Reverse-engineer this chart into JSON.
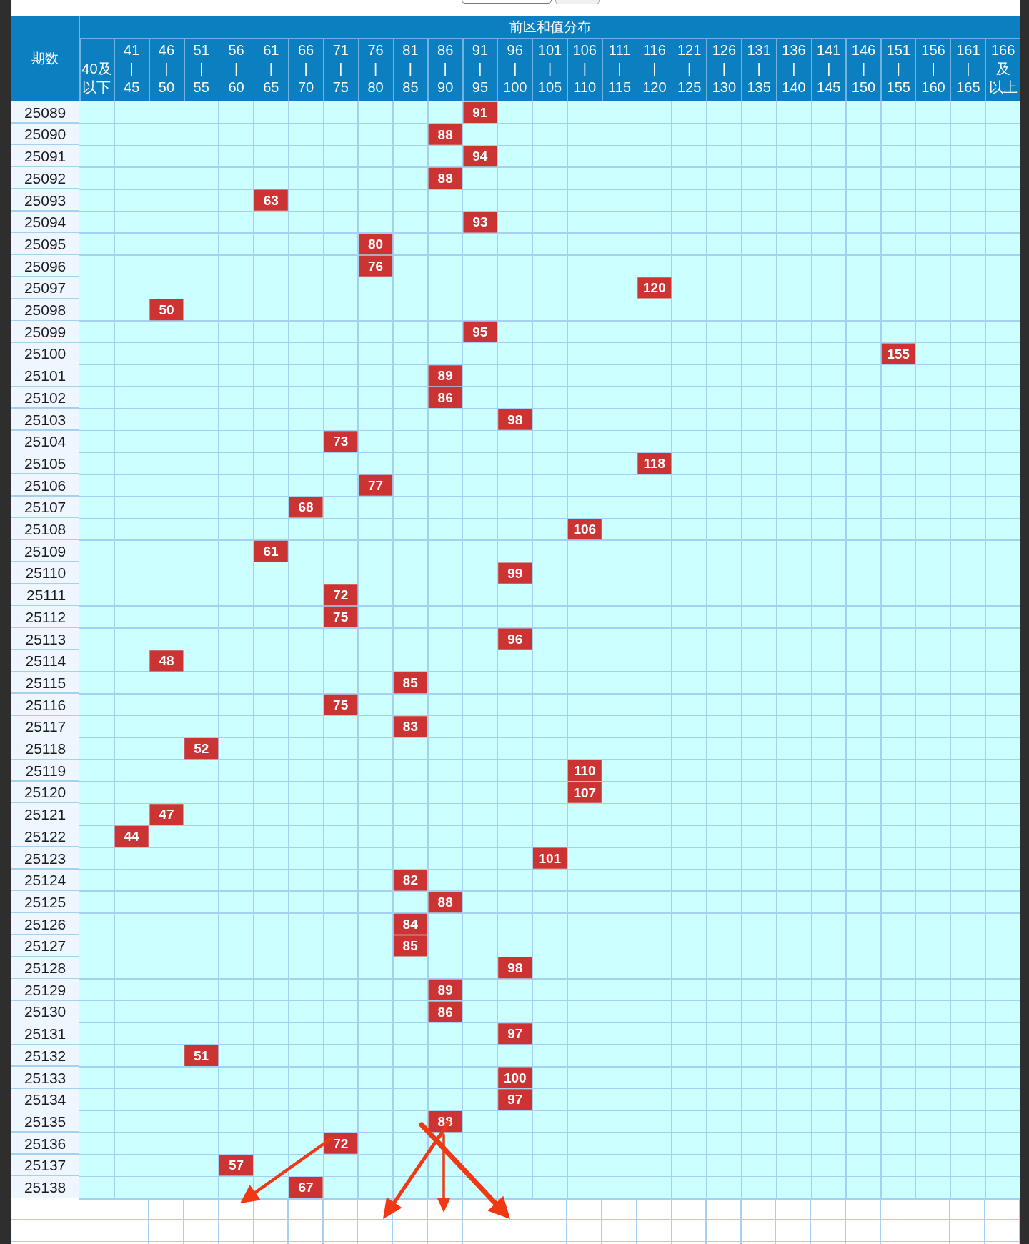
{
  "chart_data": {
    "type": "heatmap",
    "xlabel": "前区和值分布",
    "ylabel": "期数",
    "categories": [
      "40及以下",
      "41\n|\n45",
      "46\n|\n50",
      "51\n|\n55",
      "56\n|\n60",
      "61\n|\n65",
      "66\n|\n70",
      "71\n|\n75",
      "76\n|\n80",
      "81\n|\n85",
      "86\n|\n90",
      "91\n|\n95",
      "96\n|\n100",
      "101\n|\n105",
      "106\n|\n110",
      "111\n|\n115",
      "116\n|\n120",
      "121\n|\n125",
      "126\n|\n130",
      "131\n|\n135",
      "136\n|\n140",
      "141\n|\n145",
      "146\n|\n150",
      "151\n|\n155",
      "156\n|\n160",
      "161\n|\n165",
      "166及以上"
    ],
    "y_categories": [
      "25089",
      "25090",
      "25091",
      "25092",
      "25093",
      "25094",
      "25095",
      "25096",
      "25097",
      "25098",
      "25099",
      "25100",
      "25101",
      "25102",
      "25103",
      "25104",
      "25105",
      "25106",
      "25107",
      "25108",
      "25109",
      "25110",
      "25111",
      "25112",
      "25113",
      "25114",
      "25115",
      "25116",
      "25117",
      "25118",
      "25119",
      "25120",
      "25121",
      "25122",
      "25123",
      "25124",
      "25125",
      "25126",
      "25127",
      "25128",
      "25129",
      "25130",
      "25131",
      "25132",
      "25133",
      "25134",
      "25135",
      "25136",
      "25137",
      "25138"
    ],
    "cells": [
      [
        null,
        null,
        null,
        null,
        null,
        null,
        null,
        null,
        null,
        null,
        null,
        91,
        null,
        null,
        null,
        null,
        null,
        null,
        null,
        null,
        null,
        null,
        null,
        null,
        null,
        null,
        null
      ],
      [
        null,
        null,
        null,
        null,
        null,
        null,
        null,
        null,
        null,
        null,
        88,
        null,
        null,
        null,
        null,
        null,
        null,
        null,
        null,
        null,
        null,
        null,
        null,
        null,
        null,
        null,
        null
      ],
      [
        null,
        null,
        null,
        null,
        null,
        null,
        null,
        null,
        null,
        null,
        null,
        94,
        null,
        null,
        null,
        null,
        null,
        null,
        null,
        null,
        null,
        null,
        null,
        null,
        null,
        null,
        null
      ],
      [
        null,
        null,
        null,
        null,
        null,
        null,
        null,
        null,
        null,
        null,
        88,
        null,
        null,
        null,
        null,
        null,
        null,
        null,
        null,
        null,
        null,
        null,
        null,
        null,
        null,
        null,
        null
      ],
      [
        null,
        null,
        null,
        null,
        null,
        63,
        null,
        null,
        null,
        null,
        null,
        null,
        null,
        null,
        null,
        null,
        null,
        null,
        null,
        null,
        null,
        null,
        null,
        null,
        null,
        null,
        null
      ],
      [
        null,
        null,
        null,
        null,
        null,
        null,
        null,
        null,
        null,
        null,
        null,
        93,
        null,
        null,
        null,
        null,
        null,
        null,
        null,
        null,
        null,
        null,
        null,
        null,
        null,
        null,
        null
      ],
      [
        null,
        null,
        null,
        null,
        null,
        null,
        null,
        null,
        80,
        null,
        null,
        null,
        null,
        null,
        null,
        null,
        null,
        null,
        null,
        null,
        null,
        null,
        null,
        null,
        null,
        null,
        null
      ],
      [
        null,
        null,
        null,
        null,
        null,
        null,
        null,
        null,
        76,
        null,
        null,
        null,
        null,
        null,
        null,
        null,
        null,
        null,
        null,
        null,
        null,
        null,
        null,
        null,
        null,
        null,
        null
      ],
      [
        null,
        null,
        null,
        null,
        null,
        null,
        null,
        null,
        null,
        null,
        null,
        null,
        null,
        null,
        null,
        null,
        120,
        null,
        null,
        null,
        null,
        null,
        null,
        null,
        null,
        null,
        null
      ],
      [
        null,
        null,
        50,
        null,
        null,
        null,
        null,
        null,
        null,
        null,
        null,
        null,
        null,
        null,
        null,
        null,
        null,
        null,
        null,
        null,
        null,
        null,
        null,
        null,
        null,
        null,
        null
      ],
      [
        null,
        null,
        null,
        null,
        null,
        null,
        null,
        null,
        null,
        null,
        null,
        95,
        null,
        null,
        null,
        null,
        null,
        null,
        null,
        null,
        null,
        null,
        null,
        null,
        null,
        null,
        null
      ],
      [
        null,
        null,
        null,
        null,
        null,
        null,
        null,
        null,
        null,
        null,
        null,
        null,
        null,
        null,
        null,
        null,
        null,
        null,
        null,
        null,
        null,
        null,
        null,
        155,
        null,
        null,
        null
      ],
      [
        null,
        null,
        null,
        null,
        null,
        null,
        null,
        null,
        null,
        null,
        89,
        null,
        null,
        null,
        null,
        null,
        null,
        null,
        null,
        null,
        null,
        null,
        null,
        null,
        null,
        null,
        null
      ],
      [
        null,
        null,
        null,
        null,
        null,
        null,
        null,
        null,
        null,
        null,
        86,
        null,
        null,
        null,
        null,
        null,
        null,
        null,
        null,
        null,
        null,
        null,
        null,
        null,
        null,
        null,
        null
      ],
      [
        null,
        null,
        null,
        null,
        null,
        null,
        null,
        null,
        null,
        null,
        null,
        null,
        98,
        null,
        null,
        null,
        null,
        null,
        null,
        null,
        null,
        null,
        null,
        null,
        null,
        null,
        null
      ],
      [
        null,
        null,
        null,
        null,
        null,
        null,
        null,
        73,
        null,
        null,
        null,
        null,
        null,
        null,
        null,
        null,
        null,
        null,
        null,
        null,
        null,
        null,
        null,
        null,
        null,
        null,
        null
      ],
      [
        null,
        null,
        null,
        null,
        null,
        null,
        null,
        null,
        null,
        null,
        null,
        null,
        null,
        null,
        null,
        null,
        118,
        null,
        null,
        null,
        null,
        null,
        null,
        null,
        null,
        null,
        null
      ],
      [
        null,
        null,
        null,
        null,
        null,
        null,
        null,
        null,
        77,
        null,
        null,
        null,
        null,
        null,
        null,
        null,
        null,
        null,
        null,
        null,
        null,
        null,
        null,
        null,
        null,
        null,
        null
      ],
      [
        null,
        null,
        null,
        null,
        null,
        null,
        68,
        null,
        null,
        null,
        null,
        null,
        null,
        null,
        null,
        null,
        null,
        null,
        null,
        null,
        null,
        null,
        null,
        null,
        null,
        null,
        null
      ],
      [
        null,
        null,
        null,
        null,
        null,
        null,
        null,
        null,
        null,
        null,
        null,
        null,
        null,
        null,
        106,
        null,
        null,
        null,
        null,
        null,
        null,
        null,
        null,
        null,
        null,
        null,
        null
      ],
      [
        null,
        null,
        null,
        null,
        null,
        61,
        null,
        null,
        null,
        null,
        null,
        null,
        null,
        null,
        null,
        null,
        null,
        null,
        null,
        null,
        null,
        null,
        null,
        null,
        null,
        null,
        null
      ],
      [
        null,
        null,
        null,
        null,
        null,
        null,
        null,
        null,
        null,
        null,
        null,
        null,
        99,
        null,
        null,
        null,
        null,
        null,
        null,
        null,
        null,
        null,
        null,
        null,
        null,
        null,
        null
      ],
      [
        null,
        null,
        null,
        null,
        null,
        null,
        null,
        72,
        null,
        null,
        null,
        null,
        null,
        null,
        null,
        null,
        null,
        null,
        null,
        null,
        null,
        null,
        null,
        null,
        null,
        null,
        null
      ],
      [
        null,
        null,
        null,
        null,
        null,
        null,
        null,
        75,
        null,
        null,
        null,
        null,
        null,
        null,
        null,
        null,
        null,
        null,
        null,
        null,
        null,
        null,
        null,
        null,
        null,
        null,
        null
      ],
      [
        null,
        null,
        null,
        null,
        null,
        null,
        null,
        null,
        null,
        null,
        null,
        null,
        96,
        null,
        null,
        null,
        null,
        null,
        null,
        null,
        null,
        null,
        null,
        null,
        null,
        null,
        null
      ],
      [
        null,
        null,
        48,
        null,
        null,
        null,
        null,
        null,
        null,
        null,
        null,
        null,
        null,
        null,
        null,
        null,
        null,
        null,
        null,
        null,
        null,
        null,
        null,
        null,
        null,
        null,
        null
      ],
      [
        null,
        null,
        null,
        null,
        null,
        null,
        null,
        null,
        null,
        85,
        null,
        null,
        null,
        null,
        null,
        null,
        null,
        null,
        null,
        null,
        null,
        null,
        null,
        null,
        null,
        null,
        null
      ],
      [
        null,
        null,
        null,
        null,
        null,
        null,
        null,
        75,
        null,
        null,
        null,
        null,
        null,
        null,
        null,
        null,
        null,
        null,
        null,
        null,
        null,
        null,
        null,
        null,
        null,
        null,
        null
      ],
      [
        null,
        null,
        null,
        null,
        null,
        null,
        null,
        null,
        null,
        83,
        null,
        null,
        null,
        null,
        null,
        null,
        null,
        null,
        null,
        null,
        null,
        null,
        null,
        null,
        null,
        null,
        null
      ],
      [
        null,
        null,
        null,
        52,
        null,
        null,
        null,
        null,
        null,
        null,
        null,
        null,
        null,
        null,
        null,
        null,
        null,
        null,
        null,
        null,
        null,
        null,
        null,
        null,
        null,
        null,
        null
      ],
      [
        null,
        null,
        null,
        null,
        null,
        null,
        null,
        null,
        null,
        null,
        null,
        null,
        null,
        null,
        110,
        null,
        null,
        null,
        null,
        null,
        null,
        null,
        null,
        null,
        null,
        null,
        null
      ],
      [
        null,
        null,
        null,
        null,
        null,
        null,
        null,
        null,
        null,
        null,
        null,
        null,
        null,
        null,
        107,
        null,
        null,
        null,
        null,
        null,
        null,
        null,
        null,
        null,
        null,
        null,
        null
      ],
      [
        null,
        null,
        47,
        null,
        null,
        null,
        null,
        null,
        null,
        null,
        null,
        null,
        null,
        null,
        null,
        null,
        null,
        null,
        null,
        null,
        null,
        null,
        null,
        null,
        null,
        null,
        null
      ],
      [
        null,
        44,
        null,
        null,
        null,
        null,
        null,
        null,
        null,
        null,
        null,
        null,
        null,
        null,
        null,
        null,
        null,
        null,
        null,
        null,
        null,
        null,
        null,
        null,
        null,
        null,
        null
      ],
      [
        null,
        null,
        null,
        null,
        null,
        null,
        null,
        null,
        null,
        null,
        null,
        null,
        null,
        101,
        null,
        null,
        null,
        null,
        null,
        null,
        null,
        null,
        null,
        null,
        null,
        null,
        null
      ],
      [
        null,
        null,
        null,
        null,
        null,
        null,
        null,
        null,
        null,
        82,
        null,
        null,
        null,
        null,
        null,
        null,
        null,
        null,
        null,
        null,
        null,
        null,
        null,
        null,
        null,
        null,
        null
      ],
      [
        null,
        null,
        null,
        null,
        null,
        null,
        null,
        null,
        null,
        null,
        88,
        null,
        null,
        null,
        null,
        null,
        null,
        null,
        null,
        null,
        null,
        null,
        null,
        null,
        null,
        null,
        null
      ],
      [
        null,
        null,
        null,
        null,
        null,
        null,
        null,
        null,
        null,
        84,
        null,
        null,
        null,
        null,
        null,
        null,
        null,
        null,
        null,
        null,
        null,
        null,
        null,
        null,
        null,
        null,
        null
      ],
      [
        null,
        null,
        null,
        null,
        null,
        null,
        null,
        null,
        null,
        85,
        null,
        null,
        null,
        null,
        null,
        null,
        null,
        null,
        null,
        null,
        null,
        null,
        null,
        null,
        null,
        null,
        null
      ],
      [
        null,
        null,
        null,
        null,
        null,
        null,
        null,
        null,
        null,
        null,
        null,
        null,
        98,
        null,
        null,
        null,
        null,
        null,
        null,
        null,
        null,
        null,
        null,
        null,
        null,
        null,
        null
      ],
      [
        null,
        null,
        null,
        null,
        null,
        null,
        null,
        null,
        null,
        null,
        89,
        null,
        null,
        null,
        null,
        null,
        null,
        null,
        null,
        null,
        null,
        null,
        null,
        null,
        null,
        null,
        null
      ],
      [
        null,
        null,
        null,
        null,
        null,
        null,
        null,
        null,
        null,
        null,
        86,
        null,
        null,
        null,
        null,
        null,
        null,
        null,
        null,
        null,
        null,
        null,
        null,
        null,
        null,
        null,
        null
      ],
      [
        null,
        null,
        null,
        null,
        null,
        null,
        null,
        null,
        null,
        null,
        null,
        null,
        97,
        null,
        null,
        null,
        null,
        null,
        null,
        null,
        null,
        null,
        null,
        null,
        null,
        null,
        null
      ],
      [
        null,
        null,
        null,
        51,
        null,
        null,
        null,
        null,
        null,
        null,
        null,
        null,
        null,
        null,
        null,
        null,
        null,
        null,
        null,
        null,
        null,
        null,
        null,
        null,
        null,
        null,
        null
      ],
      [
        null,
        null,
        null,
        null,
        null,
        null,
        null,
        null,
        null,
        null,
        null,
        null,
        100,
        null,
        null,
        null,
        null,
        null,
        null,
        null,
        null,
        null,
        null,
        null,
        null,
        null,
        null
      ],
      [
        null,
        null,
        null,
        null,
        null,
        null,
        null,
        null,
        null,
        null,
        null,
        null,
        97,
        null,
        null,
        null,
        null,
        null,
        null,
        null,
        null,
        null,
        null,
        null,
        null,
        null,
        null
      ],
      [
        null,
        null,
        null,
        null,
        null,
        null,
        null,
        null,
        null,
        null,
        88,
        null,
        null,
        null,
        null,
        null,
        null,
        null,
        null,
        null,
        null,
        null,
        null,
        null,
        null,
        null,
        null
      ],
      [
        null,
        null,
        null,
        null,
        null,
        null,
        null,
        72,
        null,
        null,
        null,
        null,
        null,
        null,
        null,
        null,
        null,
        null,
        null,
        null,
        null,
        null,
        null,
        null,
        null,
        null,
        null
      ],
      [
        null,
        null,
        null,
        null,
        57,
        null,
        null,
        null,
        null,
        null,
        null,
        null,
        null,
        null,
        null,
        null,
        null,
        null,
        null,
        null,
        null,
        null,
        null,
        null,
        null,
        null,
        null
      ],
      [
        null,
        null,
        null,
        null,
        null,
        null,
        67,
        null,
        null,
        null,
        null,
        null,
        null,
        null,
        null,
        null,
        null,
        null,
        null,
        null,
        null,
        null,
        null,
        null,
        null,
        null,
        null
      ]
    ],
    "color": "#cc3333",
    "grid": true,
    "data_labels": true
  }
}
